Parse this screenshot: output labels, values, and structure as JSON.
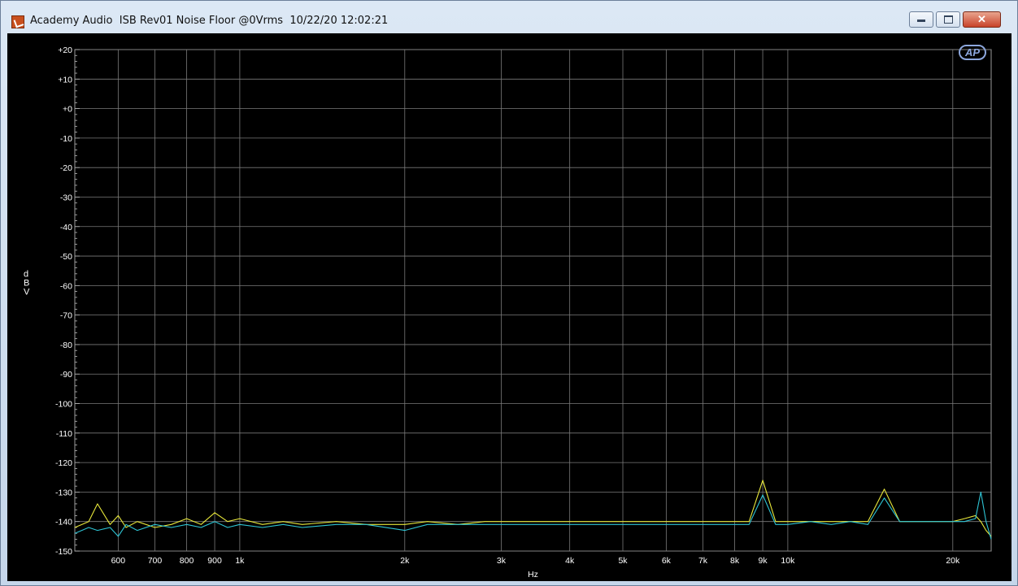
{
  "window": {
    "title": "Academy Audio  ISB Rev01 Noise Floor @0Vrms  10/22/20 12:02:21",
    "buttons": {
      "minimize": "minimize",
      "maximize": "maximize",
      "close": "✕"
    }
  },
  "logo": "AP",
  "chart_data": {
    "type": "line",
    "title": "",
    "xlabel": "Hz",
    "ylabel": "dBV",
    "xscale": "log",
    "xlim": [
      500,
      23500
    ],
    "ylim": [
      -150,
      20
    ],
    "grid": true,
    "background": "#000000",
    "yticks": [
      20,
      10,
      0,
      -10,
      -20,
      -30,
      -40,
      -50,
      -60,
      -70,
      -80,
      -90,
      -100,
      -110,
      -120,
      -130,
      -140,
      -150
    ],
    "ytick_labels": [
      "+20",
      "+10",
      "+0",
      "-10",
      "-20",
      "-30",
      "-40",
      "-50",
      "-60",
      "-70",
      "-80",
      "-90",
      "-100",
      "-110",
      "-120",
      "-130",
      "-140",
      "-150"
    ],
    "xticks": [
      600,
      700,
      800,
      900,
      1000,
      2000,
      3000,
      4000,
      5000,
      6000,
      7000,
      8000,
      9000,
      10000,
      20000
    ],
    "xtick_labels": [
      "600",
      "700",
      "800",
      "900",
      "1k",
      "2k",
      "3k",
      "4k",
      "5k",
      "6k",
      "7k",
      "8k",
      "9k",
      "10k",
      "20k"
    ],
    "series": [
      {
        "color": "#e8e83a",
        "x": [
          500,
          530,
          550,
          580,
          600,
          620,
          650,
          700,
          750,
          800,
          850,
          900,
          950,
          1000,
          1100,
          1200,
          1300,
          1500,
          1700,
          2000,
          2200,
          2500,
          2800,
          3000,
          3500,
          4000,
          4500,
          5000,
          5500,
          6000,
          6500,
          7000,
          7500,
          8000,
          8500,
          9000,
          9500,
          10000,
          11000,
          12000,
          13000,
          14000,
          15000,
          16000,
          17000,
          18000,
          19000,
          20000,
          21000,
          22000,
          22500,
          23000,
          23500
        ],
        "y": [
          -142,
          -140,
          -134,
          -141,
          -138,
          -142,
          -140,
          -142,
          -141,
          -139,
          -141,
          -137,
          -140,
          -139,
          -141,
          -140,
          -141,
          -140,
          -141,
          -141,
          -140,
          -141,
          -140,
          -140,
          -140,
          -140,
          -140,
          -140,
          -140,
          -140,
          -140,
          -140,
          -140,
          -140,
          -140,
          -126,
          -140,
          -140,
          -140,
          -140,
          -140,
          -140,
          -129,
          -140,
          -140,
          -140,
          -140,
          -140,
          -139,
          -138,
          -140,
          -143,
          -145
        ]
      },
      {
        "color": "#2ec4d4",
        "x": [
          500,
          530,
          550,
          580,
          600,
          620,
          650,
          700,
          750,
          800,
          850,
          900,
          950,
          1000,
          1100,
          1200,
          1300,
          1500,
          1700,
          2000,
          2200,
          2500,
          2800,
          3000,
          3500,
          4000,
          4500,
          5000,
          5500,
          6000,
          6500,
          7000,
          7500,
          8000,
          8500,
          9000,
          9500,
          10000,
          11000,
          12000,
          13000,
          14000,
          15000,
          16000,
          17000,
          18000,
          19000,
          20000,
          21000,
          22000,
          22500,
          23000,
          23500
        ],
        "y": [
          -144,
          -142,
          -143,
          -142,
          -145,
          -141,
          -143,
          -141,
          -142,
          -141,
          -142,
          -140,
          -142,
          -141,
          -142,
          -141,
          -142,
          -141,
          -141,
          -143,
          -141,
          -141,
          -141,
          -141,
          -141,
          -141,
          -141,
          -141,
          -141,
          -141,
          -141,
          -141,
          -141,
          -141,
          -141,
          -131,
          -141,
          -141,
          -140,
          -141,
          -140,
          -141,
          -132,
          -140,
          -140,
          -140,
          -140,
          -140,
          -140,
          -139,
          -130,
          -140,
          -146
        ]
      }
    ]
  }
}
